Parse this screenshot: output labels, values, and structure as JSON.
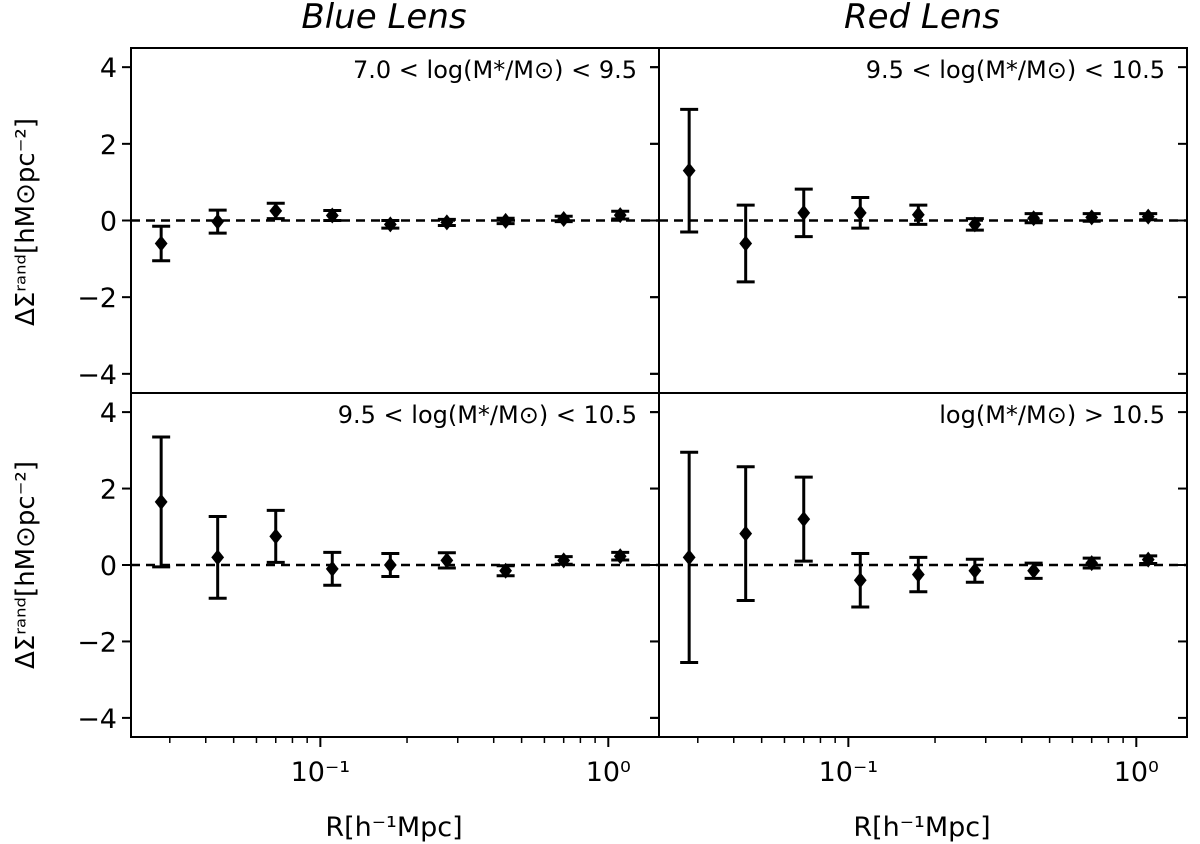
{
  "chart_data": {
    "type": "scatter",
    "figure_type": "errorbar-grid",
    "column_titles": [
      "Blue Lens",
      "Red Lens"
    ],
    "xlabel": "R[h⁻¹Mpc]",
    "ylabel": "ΔΣʳᵃⁿᵈ[hM⊙pc⁻²]",
    "xscale": "log",
    "xlim": [
      0.022,
      1.5
    ],
    "ylim": [
      -4.5,
      4.5
    ],
    "yticks": [
      -4,
      -2,
      0,
      2,
      4
    ],
    "ytick_labels": [
      "−4",
      "−2",
      "0",
      "2",
      "4"
    ],
    "xtick_labels": [
      {
        "value": 0.1,
        "label": "10⁻¹"
      },
      {
        "value": 1.0,
        "label": "10⁰"
      }
    ],
    "reference_line": 0,
    "x": [
      0.028,
      0.044,
      0.07,
      0.11,
      0.175,
      0.275,
      0.44,
      0.7,
      1.1
    ],
    "panels": [
      {
        "column": "Blue Lens",
        "row": 0,
        "label": "7.0 < log(M*/M⊙) < 9.5",
        "y": [
          -0.6,
          -0.03,
          0.25,
          0.13,
          -0.1,
          -0.05,
          -0.01,
          0.04,
          0.14
        ],
        "err": [
          0.45,
          0.3,
          0.2,
          0.13,
          0.1,
          0.08,
          0.07,
          0.07,
          0.1
        ]
      },
      {
        "column": "Red Lens",
        "row": 0,
        "label": "9.5 < log(M*/M⊙) < 10.5",
        "y": [
          1.3,
          -0.6,
          0.2,
          0.2,
          0.15,
          -0.1,
          0.06,
          0.08,
          0.1
        ],
        "err": [
          1.6,
          1.0,
          0.62,
          0.4,
          0.25,
          0.15,
          0.12,
          0.1,
          0.08
        ]
      },
      {
        "column": "Blue Lens",
        "row": 1,
        "label": "9.5 < log(M*/M⊙) < 10.5",
        "y": [
          1.65,
          0.2,
          0.75,
          -0.1,
          0.0,
          0.12,
          -0.15,
          0.12,
          0.23
        ],
        "err": [
          1.7,
          1.07,
          0.68,
          0.43,
          0.3,
          0.2,
          0.13,
          0.1,
          0.1
        ]
      },
      {
        "column": "Red Lens",
        "row": 1,
        "label": "log(M*/M⊙) > 10.5",
        "y": [
          0.2,
          0.82,
          1.2,
          -0.4,
          -0.25,
          -0.15,
          -0.15,
          0.05,
          0.14
        ],
        "err": [
          2.75,
          1.75,
          1.1,
          0.7,
          0.45,
          0.3,
          0.2,
          0.13,
          0.1
        ]
      }
    ]
  }
}
